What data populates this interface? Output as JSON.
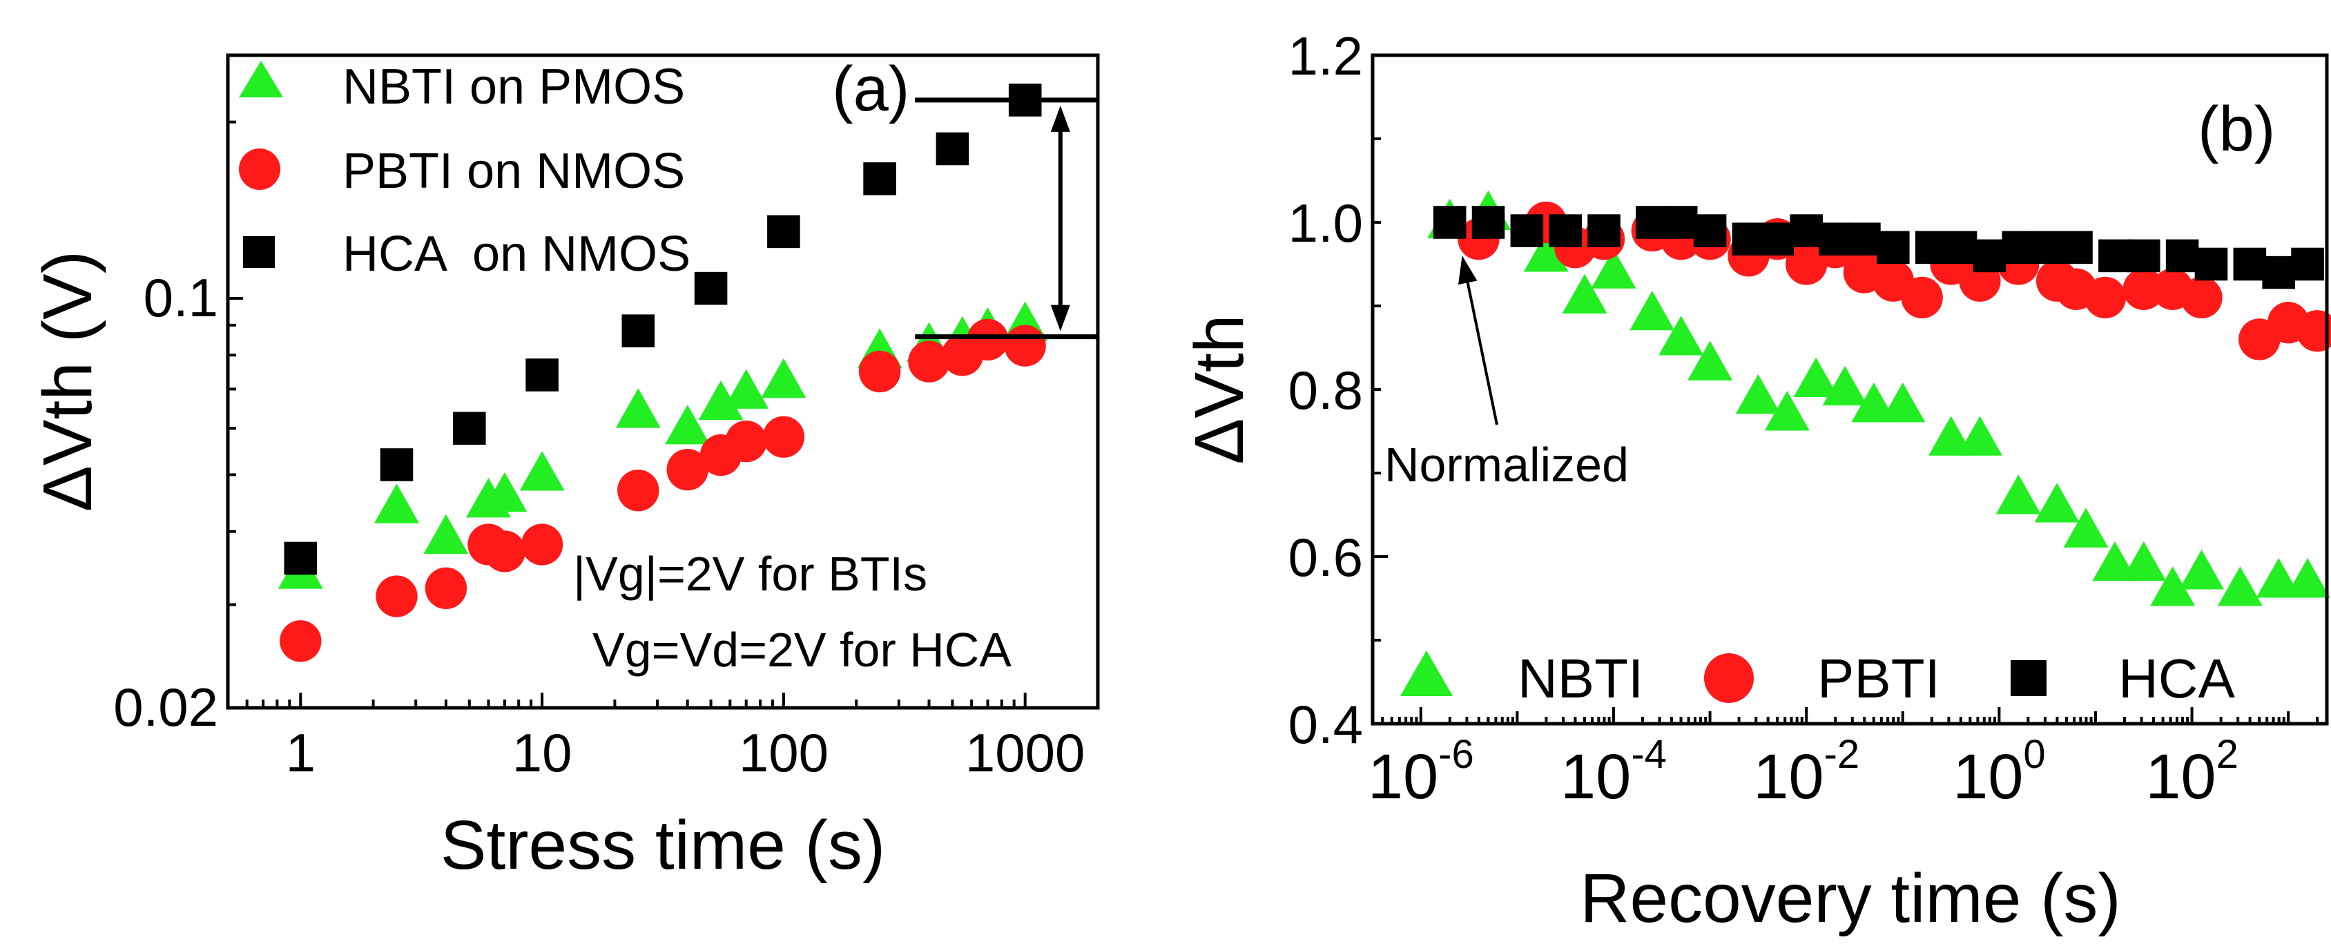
{
  "chart_data": [
    {
      "type": "scatter",
      "panel_label": "(a)",
      "xlabel": "Stress time (s)",
      "ylabel": "ΔVth (V)",
      "xscale": "log",
      "yscale": "log",
      "xlim": [
        0.5,
        2000
      ],
      "ylim": [
        0.02,
        0.26
      ],
      "xticks": [
        {
          "value": 1,
          "label": "1"
        },
        {
          "value": 10,
          "label": "10"
        },
        {
          "value": 100,
          "label": "100"
        },
        {
          "value": 1000,
          "label": "1000"
        }
      ],
      "yticks": [
        {
          "value": 0.02,
          "label": "0.02"
        },
        {
          "value": 0.1,
          "label": "0.1"
        }
      ],
      "legend_position": "top-left",
      "series": [
        {
          "name": "NBTI on PMOS",
          "marker": "triangle",
          "color": "#22ee22",
          "x": [
            1,
            2.5,
            4,
            6,
            7,
            10,
            25,
            40,
            55,
            70,
            100,
            250,
            400,
            550,
            700,
            1000
          ],
          "y": [
            0.034,
            0.044,
            0.039,
            0.045,
            0.046,
            0.05,
            0.064,
            0.06,
            0.066,
            0.069,
            0.072,
            0.081,
            0.083,
            0.085,
            0.088,
            0.09
          ]
        },
        {
          "name": "PBTI on NMOS",
          "marker": "circle",
          "color": "#ff1a1a",
          "x": [
            1,
            2.5,
            4,
            6,
            7,
            10,
            25,
            40,
            55,
            70,
            100,
            250,
            400,
            550,
            700,
            1000
          ],
          "y": [
            0.026,
            0.031,
            0.032,
            0.038,
            0.037,
            0.038,
            0.047,
            0.051,
            0.054,
            0.057,
            0.058,
            0.075,
            0.078,
            0.08,
            0.085,
            0.083
          ]
        },
        {
          "name": "HCA  on NMOS",
          "marker": "square",
          "color": "#000000",
          "x": [
            1,
            2.5,
            5,
            10,
            25,
            50,
            100,
            250,
            500,
            1000
          ],
          "y": [
            0.036,
            0.052,
            0.06,
            0.074,
            0.088,
            0.104,
            0.13,
            0.16,
            0.18,
            0.218
          ]
        }
      ],
      "annotations": {
        "conditions_line1": "|Vg|=2V for BTIs",
        "conditions_line2": "Vg=Vd=2V for HCA",
        "bracket_top_value": 0.218,
        "bracket_bottom_value": 0.086,
        "bracket_x_range": [
          350,
          2000
        ],
        "arrow_x": 1400
      }
    },
    {
      "type": "scatter",
      "panel_label": "(b)",
      "xlabel": "Recovery time (s)",
      "ylabel": "ΔVth",
      "xscale": "log",
      "yscale": "linear",
      "xlim_exp": [
        -6.5,
        3.4
      ],
      "ylim": [
        0.4,
        1.2
      ],
      "xticks": [
        {
          "exp": -6,
          "base": "10",
          "sup": "-6"
        },
        {
          "exp": -4,
          "base": "10",
          "sup": "-4"
        },
        {
          "exp": -2,
          "base": "10",
          "sup": "-2"
        },
        {
          "exp": 0,
          "base": "10",
          "sup": "0"
        },
        {
          "exp": 2,
          "base": "10",
          "sup": "2"
        }
      ],
      "yticks": [
        {
          "value": 0.4,
          "label": "0.4"
        },
        {
          "value": 0.6,
          "label": "0.6"
        },
        {
          "value": 0.8,
          "label": "0.8"
        },
        {
          "value": 1.0,
          "label": "1.0"
        },
        {
          "value": 1.2,
          "label": "1.2"
        }
      ],
      "legend_position": "bottom",
      "series": [
        {
          "name": "NBTI",
          "marker": "triangle",
          "color": "#22ee22",
          "x_exp": [
            -5.7,
            -5.3,
            -4.7,
            -4.3,
            -4.0,
            -3.6,
            -3.3,
            -3.0,
            -2.5,
            -2.2,
            -1.9,
            -1.6,
            -1.3,
            -1.0,
            -0.5,
            -0.2,
            0.2,
            0.6,
            0.9,
            1.2,
            1.5,
            1.8,
            2.1,
            2.5,
            2.9,
            3.2
          ],
          "y": [
            1.0,
            1.01,
            0.96,
            0.91,
            0.94,
            0.89,
            0.86,
            0.83,
            0.79,
            0.77,
            0.81,
            0.8,
            0.78,
            0.78,
            0.74,
            0.74,
            0.67,
            0.66,
            0.63,
            0.59,
            0.59,
            0.56,
            0.58,
            0.56,
            0.57,
            0.57
          ]
        },
        {
          "name": "PBTI",
          "marker": "circle",
          "color": "#ff1a1a",
          "x_exp": [
            -5.4,
            -4.7,
            -4.4,
            -4.1,
            -3.6,
            -3.3,
            -3.0,
            -2.6,
            -2.3,
            -2.0,
            -1.7,
            -1.4,
            -1.1,
            -0.8,
            -0.5,
            -0.2,
            0.2,
            0.6,
            0.8,
            1.1,
            1.5,
            1.8,
            2.1,
            2.7,
            3.0,
            3.3
          ],
          "y": [
            0.98,
            1.0,
            0.97,
            0.98,
            0.99,
            0.98,
            0.98,
            0.96,
            0.98,
            0.95,
            0.97,
            0.94,
            0.93,
            0.91,
            0.95,
            0.93,
            0.95,
            0.93,
            0.92,
            0.91,
            0.92,
            0.92,
            0.91,
            0.86,
            0.88,
            0.87
          ]
        },
        {
          "name": "HCA",
          "marker": "square",
          "color": "#000000",
          "x_exp": [
            -5.7,
            -5.3,
            -4.9,
            -4.5,
            -4.1,
            -3.6,
            -3.3,
            -3.0,
            -2.6,
            -2.3,
            -2.0,
            -1.7,
            -1.4,
            -1.1,
            -0.7,
            -0.4,
            -0.1,
            0.2,
            0.5,
            0.8,
            1.2,
            1.5,
            1.9,
            2.2,
            2.6,
            2.9,
            3.2
          ],
          "y": [
            1.0,
            1.0,
            0.99,
            0.99,
            0.99,
            1.0,
            1.0,
            0.99,
            0.98,
            0.98,
            0.99,
            0.98,
            0.98,
            0.97,
            0.97,
            0.97,
            0.96,
            0.97,
            0.97,
            0.97,
            0.96,
            0.96,
            0.96,
            0.95,
            0.95,
            0.94,
            0.95
          ]
        }
      ],
      "annotations": {
        "normalized_label": "Normalized",
        "arrow_target_exp": -5.6,
        "arrow_target_y": 0.985
      }
    }
  ]
}
